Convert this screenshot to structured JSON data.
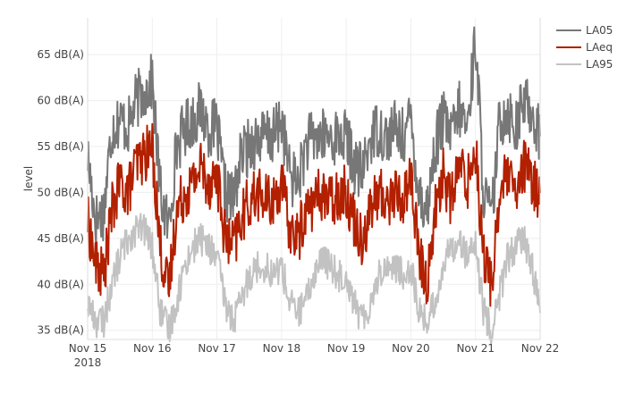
{
  "chart_data": {
    "type": "line",
    "title": "",
    "xlabel": "",
    "ylabel": "level",
    "ylim": [
      34,
      69
    ],
    "xlim": [
      "2018-11-15",
      "2018-11-22"
    ],
    "y_ticks": [
      {
        "value": 35,
        "label": "35 dB(A)"
      },
      {
        "value": 40,
        "label": "40 dB(A)"
      },
      {
        "value": 45,
        "label": "45 dB(A)"
      },
      {
        "value": 50,
        "label": "50 dB(A)"
      },
      {
        "value": 55,
        "label": "55 dB(A)"
      },
      {
        "value": 60,
        "label": "60 dB(A)"
      },
      {
        "value": 65,
        "label": "65 dB(A)"
      }
    ],
    "x_ticks": [
      {
        "date": "2018-11-15",
        "label": "Nov 15",
        "sublabel": "2018"
      },
      {
        "date": "2018-11-16",
        "label": "Nov 16",
        "sublabel": ""
      },
      {
        "date": "2018-11-17",
        "label": "Nov 17",
        "sublabel": ""
      },
      {
        "date": "2018-11-18",
        "label": "Nov 18",
        "sublabel": ""
      },
      {
        "date": "2018-11-19",
        "label": "Nov 19",
        "sublabel": ""
      },
      {
        "date": "2018-11-20",
        "label": "Nov 20",
        "sublabel": ""
      },
      {
        "date": "2018-11-21",
        "label": "Nov 21",
        "sublabel": ""
      },
      {
        "date": "2018-11-22",
        "label": "Nov 22",
        "sublabel": ""
      }
    ],
    "grid": true,
    "legend_position": "top-right",
    "series": [
      {
        "name": "LA05",
        "color": "#777777",
        "x": [
          "2018-11-15 00:00",
          "2018-11-15 03:00",
          "2018-11-15 06:00",
          "2018-11-15 09:00",
          "2018-11-15 12:00",
          "2018-11-15 15:00",
          "2018-11-15 18:00",
          "2018-11-15 21:00",
          "2018-11-16 00:00",
          "2018-11-16 03:00",
          "2018-11-16 06:00",
          "2018-11-16 09:00",
          "2018-11-16 12:00",
          "2018-11-16 15:00",
          "2018-11-16 18:00",
          "2018-11-16 21:00",
          "2018-11-17 00:00",
          "2018-11-17 03:00",
          "2018-11-17 06:00",
          "2018-11-17 09:00",
          "2018-11-17 12:00",
          "2018-11-17 15:00",
          "2018-11-17 18:00",
          "2018-11-17 21:00",
          "2018-11-18 00:00",
          "2018-11-18 03:00",
          "2018-11-18 06:00",
          "2018-11-18 09:00",
          "2018-11-18 12:00",
          "2018-11-18 15:00",
          "2018-11-18 18:00",
          "2018-11-18 21:00",
          "2018-11-19 00:00",
          "2018-11-19 03:00",
          "2018-11-19 06:00",
          "2018-11-19 09:00",
          "2018-11-19 12:00",
          "2018-11-19 15:00",
          "2018-11-19 18:00",
          "2018-11-19 21:00",
          "2018-11-20 00:00",
          "2018-11-20 03:00",
          "2018-11-20 06:00",
          "2018-11-20 09:00",
          "2018-11-20 12:00",
          "2018-11-20 15:00",
          "2018-11-20 18:00",
          "2018-11-20 21:00",
          "2018-11-21 00:00",
          "2018-11-21 03:00",
          "2018-11-21 06:00",
          "2018-11-21 09:00",
          "2018-11-21 12:00",
          "2018-11-21 15:00",
          "2018-11-21 18:00",
          "2018-11-21 21:00",
          "2018-11-22 00:00"
        ],
        "values": [
          54,
          47,
          48,
          57,
          58,
          57,
          60,
          61,
          62,
          50,
          46,
          55,
          57,
          58,
          59,
          57,
          57,
          50,
          49,
          54,
          55,
          56,
          56,
          56,
          58,
          52,
          51,
          55,
          56,
          56,
          56,
          56,
          56,
          53,
          52,
          56,
          57,
          56,
          57,
          56,
          58,
          50,
          48,
          55,
          58,
          56,
          59,
          57,
          67,
          50,
          47,
          58,
          59,
          57,
          60,
          59,
          56
        ]
      },
      {
        "name": "LAeq",
        "color": "#b22000",
        "x": [
          "2018-11-15 00:00",
          "2018-11-15 03:00",
          "2018-11-15 06:00",
          "2018-11-15 09:00",
          "2018-11-15 12:00",
          "2018-11-15 15:00",
          "2018-11-15 18:00",
          "2018-11-15 21:00",
          "2018-11-16 00:00",
          "2018-11-16 03:00",
          "2018-11-16 06:00",
          "2018-11-16 09:00",
          "2018-11-16 12:00",
          "2018-11-16 15:00",
          "2018-11-16 18:00",
          "2018-11-16 21:00",
          "2018-11-17 00:00",
          "2018-11-17 03:00",
          "2018-11-17 06:00",
          "2018-11-17 09:00",
          "2018-11-17 12:00",
          "2018-11-17 15:00",
          "2018-11-17 18:00",
          "2018-11-17 21:00",
          "2018-11-18 00:00",
          "2018-11-18 03:00",
          "2018-11-18 06:00",
          "2018-11-18 09:00",
          "2018-11-18 12:00",
          "2018-11-18 15:00",
          "2018-11-18 18:00",
          "2018-11-18 21:00",
          "2018-11-19 00:00",
          "2018-11-19 03:00",
          "2018-11-19 06:00",
          "2018-11-19 09:00",
          "2018-11-19 12:00",
          "2018-11-19 15:00",
          "2018-11-19 18:00",
          "2018-11-19 21:00",
          "2018-11-20 00:00",
          "2018-11-20 03:00",
          "2018-11-20 06:00",
          "2018-11-20 09:00",
          "2018-11-20 12:00",
          "2018-11-20 15:00",
          "2018-11-20 18:00",
          "2018-11-20 21:00",
          "2018-11-21 00:00",
          "2018-11-21 03:00",
          "2018-11-21 06:00",
          "2018-11-21 09:00",
          "2018-11-21 12:00",
          "2018-11-21 15:00",
          "2018-11-21 18:00",
          "2018-11-21 21:00",
          "2018-11-22 00:00"
        ],
        "values": [
          47,
          42,
          41,
          48,
          51,
          50,
          53,
          54,
          55,
          44,
          39,
          48,
          50,
          51,
          53,
          51,
          52,
          45,
          44,
          47,
          49,
          50,
          49,
          49,
          51,
          46,
          45,
          48,
          49,
          50,
          49,
          50,
          50,
          47,
          45,
          48,
          50,
          49,
          50,
          49,
          52,
          43,
          40,
          48,
          52,
          49,
          53,
          51,
          55,
          43,
          40,
          50,
          52,
          49,
          53,
          51,
          50
        ]
      },
      {
        "name": "LA95",
        "color": "#c2c2c2",
        "x": [
          "2018-11-15 00:00",
          "2018-11-15 03:00",
          "2018-11-15 06:00",
          "2018-11-15 09:00",
          "2018-11-15 12:00",
          "2018-11-15 15:00",
          "2018-11-15 18:00",
          "2018-11-15 21:00",
          "2018-11-16 00:00",
          "2018-11-16 03:00",
          "2018-11-16 06:00",
          "2018-11-16 09:00",
          "2018-11-16 12:00",
          "2018-11-16 15:00",
          "2018-11-16 18:00",
          "2018-11-16 21:00",
          "2018-11-17 00:00",
          "2018-11-17 03:00",
          "2018-11-17 06:00",
          "2018-11-17 09:00",
          "2018-11-17 12:00",
          "2018-11-17 15:00",
          "2018-11-17 18:00",
          "2018-11-17 21:00",
          "2018-11-18 00:00",
          "2018-11-18 03:00",
          "2018-11-18 06:00",
          "2018-11-18 09:00",
          "2018-11-18 12:00",
          "2018-11-18 15:00",
          "2018-11-18 18:00",
          "2018-11-18 21:00",
          "2018-11-19 00:00",
          "2018-11-19 03:00",
          "2018-11-19 06:00",
          "2018-11-19 09:00",
          "2018-11-19 12:00",
          "2018-11-19 15:00",
          "2018-11-19 18:00",
          "2018-11-19 21:00",
          "2018-11-20 00:00",
          "2018-11-20 03:00",
          "2018-11-20 06:00",
          "2018-11-20 09:00",
          "2018-11-20 12:00",
          "2018-11-20 15:00",
          "2018-11-20 18:00",
          "2018-11-20 21:00",
          "2018-11-21 00:00",
          "2018-11-21 03:00",
          "2018-11-21 06:00",
          "2018-11-21 09:00",
          "2018-11-21 12:00",
          "2018-11-21 15:00",
          "2018-11-21 18:00",
          "2018-11-21 21:00",
          "2018-11-22 00:00"
        ],
        "values": [
          38,
          36,
          36,
          40,
          43,
          45,
          46,
          46,
          44,
          37,
          35,
          38,
          42,
          44,
          45,
          44,
          43,
          38,
          36,
          38,
          41,
          42,
          42,
          41,
          42,
          38,
          37,
          38,
          41,
          43,
          42,
          41,
          41,
          38,
          36,
          38,
          41,
          42,
          42,
          41,
          42,
          37,
          36,
          38,
          42,
          44,
          45,
          43,
          44,
          37,
          35,
          39,
          43,
          44,
          45,
          42,
          37
        ]
      }
    ]
  }
}
